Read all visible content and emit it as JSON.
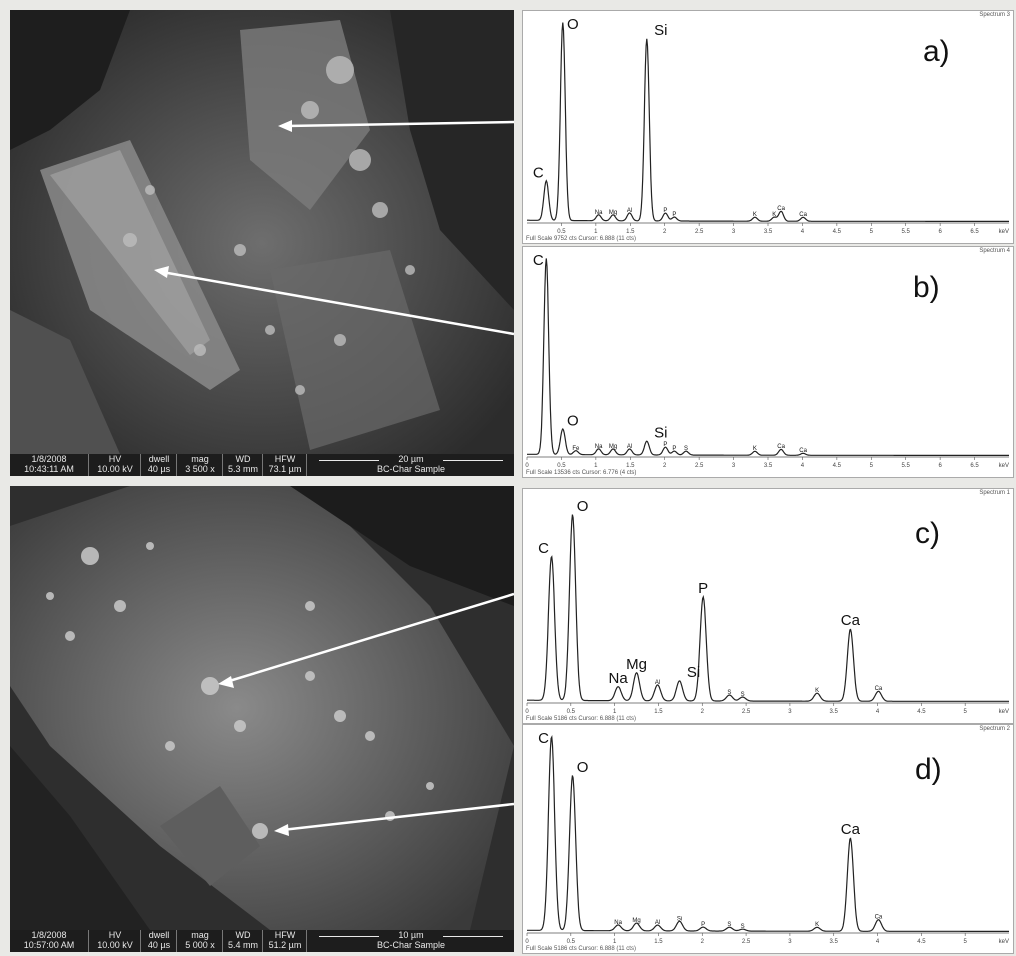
{
  "sem_images": [
    {
      "info": {
        "date": "1/8/2008",
        "time": "10:43:11 AM",
        "hv_label": "HV",
        "hv": "10.00 kV",
        "dwell_label": "dwell",
        "dwell": "40 µs",
        "mag_label": "mag",
        "mag": "3 500 x",
        "wd_label": "WD",
        "wd": "5.3 mm",
        "hfw_label": "HFW",
        "hfw": "73.1 µm",
        "scale": "20 µm",
        "sample": "BC-Char Sample"
      }
    },
    {
      "info": {
        "date": "1/8/2008",
        "time": "10:57:00 AM",
        "hv_label": "HV",
        "hv": "10.00 kV",
        "dwell_label": "dwell",
        "dwell": "40 µs",
        "mag_label": "mag",
        "mag": "5 000 x",
        "wd_label": "WD",
        "wd": "5.4 mm",
        "hfw_label": "HFW",
        "hfw": "51.2 µm",
        "scale": "10 µm",
        "sample": "BC-Char Sample"
      }
    }
  ],
  "chart_data": [
    {
      "type": "line",
      "panel": "a)",
      "spectrum_name": "Spectrum 3",
      "footer": "Full Scale 9752 cts Cursor: 6.888 (11 cts)",
      "xlabel": "keV",
      "xlim": [
        0,
        7
      ],
      "x_ticks": [
        "0.5",
        "1",
        "1.5",
        "2",
        "2.5",
        "3",
        "3.5",
        "4",
        "4.5",
        "5",
        "5.5",
        "6",
        "6.5"
      ],
      "peaks": [
        {
          "label": "C",
          "x": 0.28,
          "y": 0.2,
          "big": true
        },
        {
          "label": "O",
          "x": 0.52,
          "y": 1.0,
          "big": true
        },
        {
          "label": "Na",
          "x": 1.04,
          "y": 0.03,
          "big": false
        },
        {
          "label": "Mg",
          "x": 1.25,
          "y": 0.03,
          "big": false
        },
        {
          "label": "Al",
          "x": 1.49,
          "y": 0.04,
          "big": false
        },
        {
          "label": "Si",
          "x": 1.74,
          "y": 0.92,
          "big": true
        },
        {
          "label": "P",
          "x": 2.01,
          "y": 0.04,
          "big": false
        },
        {
          "label": "P",
          "x": 2.14,
          "y": 0.02,
          "big": false
        },
        {
          "label": "K",
          "x": 3.31,
          "y": 0.02,
          "big": false
        },
        {
          "label": "K",
          "x": 3.59,
          "y": 0.02,
          "big": false
        },
        {
          "label": "Ca",
          "x": 3.69,
          "y": 0.05,
          "big": false
        },
        {
          "label": "Ca",
          "x": 4.01,
          "y": 0.02,
          "big": false
        }
      ]
    },
    {
      "type": "line",
      "panel": "b)",
      "spectrum_name": "Spectrum 4",
      "footer": "Full Scale 13536 cts Cursor: 6.776 (4 cts)",
      "xlabel": "keV",
      "xlim": [
        0,
        7
      ],
      "x_ticks": [
        "0",
        "0.5",
        "1",
        "1.5",
        "2",
        "2.5",
        "3",
        "3.5",
        "4",
        "4.5",
        "5",
        "5.5",
        "6",
        "6.5"
      ],
      "peaks": [
        {
          "label": "C",
          "x": 0.28,
          "y": 1.0,
          "big": true
        },
        {
          "label": "O",
          "x": 0.52,
          "y": 0.13,
          "big": true
        },
        {
          "label": "Fe",
          "x": 0.71,
          "y": 0.02,
          "big": false
        },
        {
          "label": "Na",
          "x": 1.04,
          "y": 0.03,
          "big": false
        },
        {
          "label": "Mg",
          "x": 1.25,
          "y": 0.03,
          "big": false
        },
        {
          "label": "Al",
          "x": 1.49,
          "y": 0.03,
          "big": false
        },
        {
          "label": "Si",
          "x": 1.74,
          "y": 0.07,
          "big": true
        },
        {
          "label": "P",
          "x": 2.01,
          "y": 0.04,
          "big": false
        },
        {
          "label": "P",
          "x": 2.14,
          "y": 0.02,
          "big": false
        },
        {
          "label": "S",
          "x": 2.31,
          "y": 0.02,
          "big": false
        },
        {
          "label": "K",
          "x": 3.31,
          "y": 0.02,
          "big": false
        },
        {
          "label": "Ca",
          "x": 3.69,
          "y": 0.03,
          "big": false
        },
        {
          "label": "Ca",
          "x": 4.01,
          "y": 0.01,
          "big": false
        }
      ]
    },
    {
      "type": "line",
      "panel": "c)",
      "spectrum_name": "Spectrum 1",
      "footer": "Full Scale 5186 cts Cursor: 6.888 (11 cts)",
      "xlabel": "keV",
      "xlim": [
        0,
        5.5
      ],
      "x_ticks": [
        "0",
        "0.5",
        "1",
        "1.5",
        "2",
        "2.5",
        "3",
        "3.5",
        "4",
        "4.5",
        "5"
      ],
      "peaks": [
        {
          "label": "C",
          "x": 0.28,
          "y": 0.72,
          "big": true
        },
        {
          "label": "O",
          "x": 0.52,
          "y": 0.93,
          "big": true
        },
        {
          "label": "Na",
          "x": 1.04,
          "y": 0.07,
          "big": true
        },
        {
          "label": "Mg",
          "x": 1.25,
          "y": 0.14,
          "big": true
        },
        {
          "label": "Al",
          "x": 1.49,
          "y": 0.08,
          "big": false
        },
        {
          "label": "Si",
          "x": 1.74,
          "y": 0.1,
          "big": true
        },
        {
          "label": "P",
          "x": 2.01,
          "y": 0.52,
          "big": true
        },
        {
          "label": "S",
          "x": 2.31,
          "y": 0.03,
          "big": false
        },
        {
          "label": "S",
          "x": 2.46,
          "y": 0.02,
          "big": false
        },
        {
          "label": "K",
          "x": 3.31,
          "y": 0.04,
          "big": false
        },
        {
          "label": "Ca",
          "x": 3.69,
          "y": 0.36,
          "big": true
        },
        {
          "label": "Ca",
          "x": 4.01,
          "y": 0.05,
          "big": false
        }
      ]
    },
    {
      "type": "line",
      "panel": "d)",
      "spectrum_name": "Spectrum 2",
      "footer": "Full Scale 5186 cts Cursor: 6.888 (11 cts)",
      "xlabel": "keV",
      "xlim": [
        0,
        5.5
      ],
      "x_ticks": [
        "0",
        "0.5",
        "1",
        "1.5",
        "2",
        "2.5",
        "3",
        "3.5",
        "4",
        "4.5",
        "5"
      ],
      "peaks": [
        {
          "label": "C",
          "x": 0.28,
          "y": 1.0,
          "big": true
        },
        {
          "label": "O",
          "x": 0.52,
          "y": 0.8,
          "big": true
        },
        {
          "label": "Na",
          "x": 1.04,
          "y": 0.03,
          "big": false
        },
        {
          "label": "Mg",
          "x": 1.25,
          "y": 0.04,
          "big": false
        },
        {
          "label": "Al",
          "x": 1.49,
          "y": 0.03,
          "big": false
        },
        {
          "label": "Si",
          "x": 1.74,
          "y": 0.05,
          "big": false
        },
        {
          "label": "P",
          "x": 2.01,
          "y": 0.02,
          "big": false
        },
        {
          "label": "S",
          "x": 2.31,
          "y": 0.02,
          "big": false
        },
        {
          "label": "S",
          "x": 2.46,
          "y": 0.01,
          "big": false
        },
        {
          "label": "K",
          "x": 3.31,
          "y": 0.02,
          "big": false
        },
        {
          "label": "Ca",
          "x": 3.69,
          "y": 0.48,
          "big": true
        },
        {
          "label": "Ca",
          "x": 4.01,
          "y": 0.06,
          "big": false
        }
      ]
    }
  ]
}
